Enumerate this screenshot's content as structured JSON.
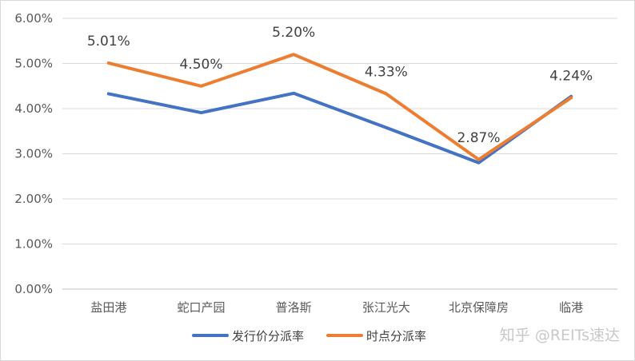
{
  "chart_data": {
    "type": "line",
    "title": "",
    "xlabel": "",
    "ylabel": "",
    "categories": [
      "盐田港",
      "蛇口产园",
      "普洛斯",
      "张江光大",
      "北京保障房",
      "临港"
    ],
    "ylim": [
      0,
      6
    ],
    "yticks": [
      0,
      1,
      2,
      3,
      4,
      5,
      6
    ],
    "ytick_labels": [
      "0.00%",
      "1.00%",
      "2.00%",
      "3.00%",
      "4.00%",
      "5.00%",
      "6.00%"
    ],
    "grid": true,
    "legend_position": "bottom",
    "series": [
      {
        "name": "发行价分派率",
        "color": "#4472C4",
        "values": [
          4.33,
          3.91,
          4.34,
          3.58,
          2.8,
          4.27
        ]
      },
      {
        "name": "时点分派率",
        "color": "#ED7D31",
        "values": [
          5.01,
          4.5,
          5.2,
          4.33,
          2.87,
          4.24
        ],
        "data_labels": [
          "5.01%",
          "4.50%",
          "5.20%",
          "4.33%",
          "2.87%",
          "4.24%"
        ]
      }
    ]
  },
  "watermark": "知乎 @REITs速达"
}
